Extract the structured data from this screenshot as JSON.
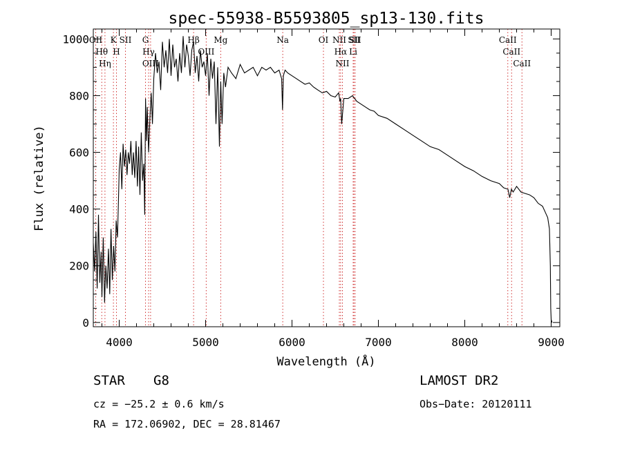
{
  "chart_data": {
    "type": "line",
    "title": "spec-55938-B5593805_sp13-130.fits",
    "xlabel": "Wavelength (Å)",
    "ylabel": "Flux (relative)",
    "xlim": [
      3700,
      9100
    ],
    "ylim": [
      -15,
      1035
    ],
    "xticks": [
      4000,
      5000,
      6000,
      7000,
      8000,
      9000
    ],
    "yticks": [
      0,
      200,
      400,
      600,
      800,
      1000
    ],
    "xtick_labels": [
      "4000",
      "5000",
      "6000",
      "7000",
      "8000",
      "9000"
    ],
    "ytick_labels": [
      "0",
      "200",
      "400",
      "600",
      "800",
      "1000"
    ],
    "grid": false,
    "legend": "none",
    "series": [
      {
        "x": [
          3700,
          3715,
          3730,
          3745,
          3760,
          3775,
          3790,
          3800,
          3815,
          3830,
          3845,
          3860,
          3875,
          3890,
          3905,
          3920,
          3935,
          3950,
          3965,
          3980,
          3990,
          4000,
          4015,
          4030,
          4045,
          4060,
          4075,
          4090,
          4105,
          4120,
          4135,
          4150,
          4165,
          4180,
          4195,
          4210,
          4225,
          4240,
          4255,
          4270,
          4285,
          4295,
          4305,
          4315,
          4325,
          4340,
          4355,
          4370,
          4385,
          4400,
          4420,
          4440,
          4460,
          4480,
          4500,
          4520,
          4540,
          4560,
          4580,
          4600,
          4620,
          4640,
          4660,
          4680,
          4700,
          4720,
          4740,
          4760,
          4780,
          4800,
          4820,
          4840,
          4860,
          4880,
          4900,
          4920,
          4940,
          4960,
          4980,
          5000,
          5020,
          5040,
          5060,
          5080,
          5100,
          5120,
          5140,
          5160,
          5175,
          5190,
          5210,
          5230,
          5260,
          5300,
          5350,
          5400,
          5450,
          5500,
          5550,
          5600,
          5650,
          5700,
          5750,
          5800,
          5850,
          5880,
          5890,
          5900,
          5920,
          5950,
          6000,
          6050,
          6100,
          6150,
          6200,
          6250,
          6300,
          6350,
          6400,
          6450,
          6500,
          6540,
          6555,
          6563,
          6575,
          6600,
          6650,
          6700,
          6750,
          6800,
          6850,
          6900,
          6950,
          7000,
          7100,
          7200,
          7300,
          7400,
          7500,
          7600,
          7700,
          7800,
          7900,
          8000,
          8100,
          8200,
          8300,
          8400,
          8450,
          8500,
          8520,
          8540,
          8560,
          8600,
          8650,
          8700,
          8750,
          8800,
          8850,
          8900,
          8930,
          8960,
          8980,
          8990,
          8995,
          9000,
          9010
        ],
        "y": [
          280,
          180,
          320,
          120,
          380,
          140,
          250,
          90,
          300,
          70,
          200,
          120,
          260,
          100,
          330,
          150,
          270,
          180,
          360,
          300,
          420,
          540,
          600,
          470,
          630,
          550,
          610,
          520,
          600,
          560,
          640,
          520,
          600,
          510,
          640,
          480,
          620,
          450,
          670,
          500,
          560,
          380,
          790,
          640,
          760,
          600,
          720,
          810,
          700,
          860,
          950,
          880,
          920,
          820,
          990,
          900,
          960,
          880,
          1000,
          870,
          980,
          900,
          930,
          850,
          950,
          880,
          1010,
          900,
          980,
          940,
          870,
          960,
          990,
          880,
          940,
          850,
          960,
          900,
          920,
          870,
          950,
          800,
          930,
          860,
          920,
          700,
          900,
          620,
          850,
          700,
          880,
          830,
          900,
          880,
          860,
          910,
          880,
          890,
          900,
          870,
          900,
          890,
          900,
          880,
          890,
          860,
          750,
          870,
          890,
          880,
          870,
          860,
          850,
          840,
          845,
          830,
          820,
          810,
          815,
          800,
          795,
          810,
          780,
          790,
          700,
          790,
          790,
          800,
          780,
          770,
          760,
          750,
          745,
          730,
          720,
          700,
          680,
          660,
          640,
          620,
          610,
          590,
          570,
          550,
          535,
          515,
          500,
          490,
          475,
          470,
          440,
          470,
          460,
          480,
          460,
          455,
          450,
          440,
          420,
          410,
          390,
          370,
          330,
          200,
          50,
          10,
          0
        ]
      }
    ],
    "line_markers": [
      {
        "wavelength": 3728,
        "label": "OII"
      },
      {
        "wavelength": 3798,
        "label": "Hθ"
      },
      {
        "wavelength": 3835,
        "label": "Hη"
      },
      {
        "wavelength": 3933,
        "label": "K"
      },
      {
        "wavelength": 3968,
        "label": "H"
      },
      {
        "wavelength": 4072,
        "label": "SII"
      },
      {
        "wavelength": 4304,
        "label": "G"
      },
      {
        "wavelength": 4340,
        "label": "Hγ"
      },
      {
        "wavelength": 4363,
        "label": "OIII"
      },
      {
        "wavelength": 4861,
        "label": "Hβ"
      },
      {
        "wavelength": 5007,
        "label": "OIII"
      },
      {
        "wavelength": 5175,
        "label": "Mg"
      },
      {
        "wavelength": 5893,
        "label": "Na"
      },
      {
        "wavelength": 6364,
        "label": "OI"
      },
      {
        "wavelength": 6548,
        "label": "NII"
      },
      {
        "wavelength": 6563,
        "label": "Hα"
      },
      {
        "wavelength": 6584,
        "label": "NII"
      },
      {
        "wavelength": 6708,
        "label": "Li"
      },
      {
        "wavelength": 6717,
        "label": "SII"
      },
      {
        "wavelength": 6731,
        "label": "SII"
      },
      {
        "wavelength": 8498,
        "label": "CaII"
      },
      {
        "wavelength": 8542,
        "label": "CaII"
      },
      {
        "wavelength": 8662,
        "label": "CaII"
      }
    ],
    "line_color": "#000000",
    "marker_color": "#d03030"
  },
  "info": {
    "object_class": "STAR",
    "subclass": "G8",
    "survey": "LAMOST DR2",
    "cz": "cz = −25.2 ± 0.6 km/s",
    "obs_date": "Obs−Date: 20120111",
    "coords": "RA = 172.06902, DEC =  28.81467"
  }
}
